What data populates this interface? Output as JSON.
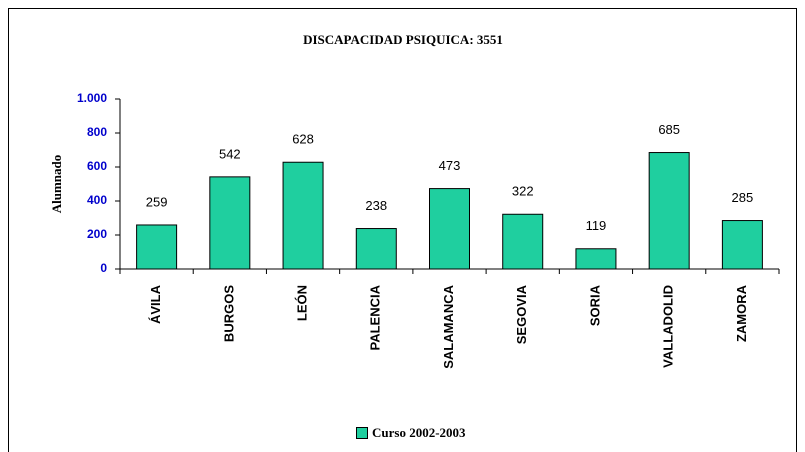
{
  "chart_data": {
    "type": "bar",
    "title": "DISCAPACIDAD PSIQUICA:  3551",
    "y_label": "Alumnado",
    "categories": [
      "ÁVILA",
      "BURGOS",
      "LEÓN",
      "PALENCIA",
      "SALAMANCA",
      "SEGOVIA",
      "SORIA",
      "VALLADOLID",
      "ZAMORA"
    ],
    "series": [
      {
        "name": "Curso 2002-2003",
        "color": "#1fcf9f",
        "values": [
          259,
          542,
          628,
          238,
          473,
          322,
          119,
          685,
          285
        ]
      }
    ],
    "ylim": [
      0,
      1000
    ],
    "yticks": [
      0,
      200,
      400,
      600,
      800,
      {
        "value": 1000,
        "label": "1.000"
      }
    ],
    "legend": "bottom"
  }
}
